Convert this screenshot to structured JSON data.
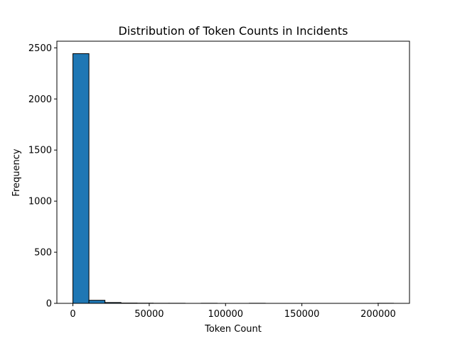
{
  "chart_data": {
    "type": "bar",
    "subtype": "histogram",
    "title": "Distribution of Token Counts in Incidents",
    "xlabel": "Token Count",
    "ylabel": "Frequency",
    "xlim": [
      -10500,
      220500
    ],
    "ylim": [
      0,
      2565
    ],
    "xticks": [
      0,
      50000,
      100000,
      150000,
      200000
    ],
    "xtick_labels": [
      "0",
      "50000",
      "100000",
      "150000",
      "200000"
    ],
    "yticks": [
      0,
      500,
      1000,
      1500,
      2000,
      2500
    ],
    "ytick_labels": [
      "0",
      "500",
      "1000",
      "1500",
      "2000",
      "2500"
    ],
    "bin_start": 0,
    "bin_width": 10500,
    "values": [
      2443,
      30,
      8,
      3,
      2,
      1,
      1,
      0,
      1,
      0,
      0,
      1,
      0,
      0,
      0,
      0,
      0,
      0,
      0,
      1
    ],
    "bar_color": "#1f77b4",
    "edge_color": "#000000",
    "grid": false,
    "legend": "none"
  }
}
